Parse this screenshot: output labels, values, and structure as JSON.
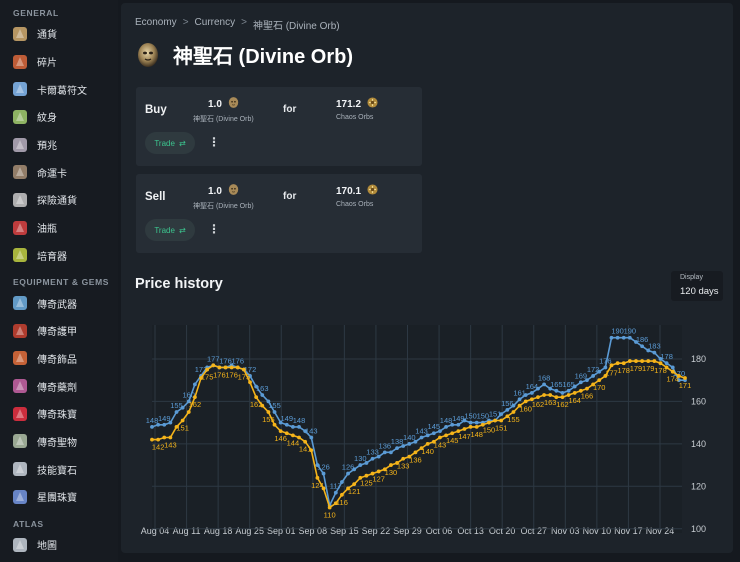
{
  "sidebar": {
    "sections": [
      {
        "heading": "GENERAL",
        "items": [
          {
            "label": "通貨",
            "icon": "currency-icon",
            "color": "#c8a46a"
          },
          {
            "label": "碎片",
            "icon": "fragment-icon",
            "color": "#d0643a"
          },
          {
            "label": "卡爾葛符文",
            "icon": "kalguur-rune-icon",
            "color": "#7fb3e8"
          },
          {
            "label": "紋身",
            "icon": "tattoo-icon",
            "color": "#9bc46a"
          },
          {
            "label": "預兆",
            "icon": "omen-icon",
            "color": "#b0a8b8"
          },
          {
            "label": "命運卡",
            "icon": "divination-card-icon",
            "color": "#a08870"
          },
          {
            "label": "探險通貨",
            "icon": "expedition-currency-icon",
            "color": "#bfbfbf"
          },
          {
            "label": "油瓶",
            "icon": "oil-icon",
            "color": "#d04040"
          },
          {
            "label": "培育器",
            "icon": "incubator-icon",
            "color": "#b8c640"
          }
        ]
      },
      {
        "heading": "EQUIPMENT & GEMS",
        "items": [
          {
            "label": "傳奇武器",
            "icon": "unique-weapon-icon",
            "color": "#6aa8d8"
          },
          {
            "label": "傳奇護甲",
            "icon": "unique-armour-icon",
            "color": "#c04030"
          },
          {
            "label": "傳奇飾品",
            "icon": "unique-accessory-icon",
            "color": "#d86a3a"
          },
          {
            "label": "傳奇藥劑",
            "icon": "unique-flask-icon",
            "color": "#c060a0"
          },
          {
            "label": "傳奇珠寶",
            "icon": "unique-jewel-icon",
            "color": "#e03040"
          },
          {
            "label": "傳奇聖物",
            "icon": "unique-relic-icon",
            "color": "#a8b8a0"
          },
          {
            "label": "技能寶石",
            "icon": "skill-gem-icon",
            "color": "#c0c8d0"
          },
          {
            "label": "星團珠寶",
            "icon": "cluster-jewel-icon",
            "color": "#7090d8"
          }
        ]
      },
      {
        "heading": "ATLAS",
        "items": [
          {
            "label": "地圖",
            "icon": "map-icon",
            "color": "#c0c8d0"
          }
        ]
      }
    ]
  },
  "breadcrumb": {
    "items": [
      "Economy",
      "Currency",
      "神聖石 (Divine Orb)"
    ],
    "separator": ">"
  },
  "page": {
    "title": "神聖石 (Divine Orb)",
    "icon": "divine-orb-icon"
  },
  "trades": [
    {
      "side": "Buy",
      "pay_amount": "1.0",
      "pay_name": "神聖石 (Divine Orb)",
      "pay_icon": "divine-orb-icon",
      "for_label": "for",
      "get_amount": "171.2",
      "get_name": "Chaos Orbs",
      "get_icon": "chaos-orb-icon",
      "trade_label": "Trade",
      "more_label": "⋮"
    },
    {
      "side": "Sell",
      "pay_amount": "1.0",
      "pay_name": "神聖石 (Divine Orb)",
      "pay_icon": "divine-orb-icon",
      "for_label": "for",
      "get_amount": "170.1",
      "get_name": "Chaos Orbs",
      "get_icon": "chaos-orb-icon",
      "trade_label": "Trade",
      "more_label": "⋮"
    }
  ],
  "price_history": {
    "title": "Price history",
    "display_label": "Display",
    "display_value": "120 days"
  },
  "chart_data": {
    "type": "line",
    "x_tick_labels": [
      "Aug 04",
      "Aug 11",
      "Aug 18",
      "Aug 25",
      "Sep 01",
      "Sep 08",
      "Sep 15",
      "Sep 22",
      "Sep 29",
      "Oct 06",
      "Oct 13",
      "Oct 20",
      "Oct 27",
      "Nov 03",
      "Nov 10",
      "Nov 17",
      "Nov 24"
    ],
    "y_ticks": [
      100,
      120,
      140,
      160,
      180
    ],
    "ylim": [
      98,
      196
    ],
    "y_axis_position": "right",
    "grid": true,
    "series": [
      {
        "color": "#5b9bd5",
        "values": [
          148,
          149,
          149,
          150,
          155,
          157,
          160,
          168,
          172,
          176,
          177,
          176,
          176,
          177,
          176,
          175,
          172,
          167,
          163,
          160,
          155,
          150,
          149,
          148,
          148,
          146,
          143,
          130,
          126,
          111,
          117,
          122,
          126,
          128,
          130,
          131,
          133,
          134,
          136,
          136,
          138,
          139,
          140,
          141,
          143,
          144,
          145,
          146,
          148,
          149,
          149,
          151,
          150,
          150,
          150,
          151,
          151,
          154,
          156,
          158,
          161,
          163,
          164,
          166,
          168,
          166,
          165,
          164,
          165,
          167,
          169,
          170,
          172,
          174,
          176,
          190,
          190,
          190,
          190,
          188,
          186,
          184,
          183,
          180,
          178,
          176,
          170,
          170
        ]
      },
      {
        "color": "#f5b41a",
        "values": [
          142,
          142,
          143,
          143,
          148,
          151,
          155,
          162,
          171,
          175,
          177,
          176,
          176,
          176,
          176,
          175,
          169,
          162,
          158,
          155,
          149,
          146,
          145,
          144,
          143,
          141,
          137,
          124,
          119,
          110,
          112,
          116,
          119,
          121,
          124,
          125,
          126,
          127,
          128,
          130,
          131,
          133,
          134,
          136,
          138,
          140,
          141,
          143,
          144,
          145,
          146,
          147,
          148,
          148,
          149,
          150,
          151,
          151,
          153,
          155,
          158,
          160,
          161,
          162,
          163,
          163,
          162,
          162,
          163,
          164,
          165,
          166,
          168,
          170,
          172,
          177,
          178,
          178,
          179,
          179,
          179,
          179,
          179,
          178,
          176,
          174,
          172,
          171
        ]
      }
    ]
  }
}
